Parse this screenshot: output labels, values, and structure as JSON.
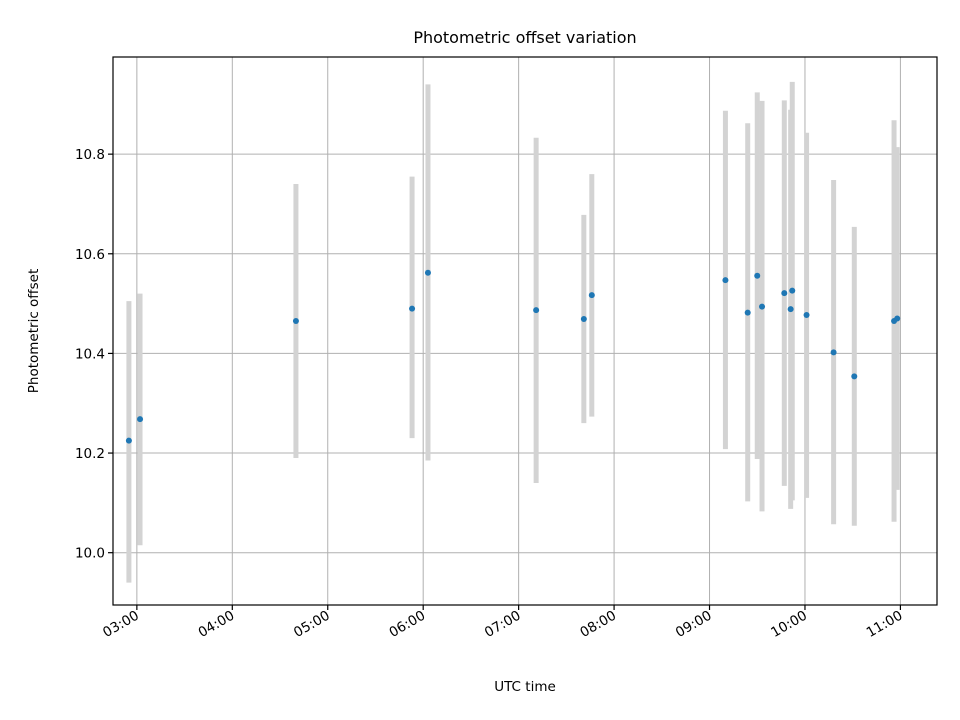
{
  "chart_data": {
    "type": "scatter",
    "title": "Photometric offset variation",
    "xlabel": "UTC time",
    "ylabel": "Photometric offset",
    "xlim": [
      "02:45",
      "11:23"
    ],
    "ylim": [
      9.895,
      10.995
    ],
    "x_ticks": [
      "03:00",
      "04:00",
      "05:00",
      "06:00",
      "07:00",
      "08:00",
      "09:00",
      "10:00",
      "11:00"
    ],
    "y_ticks": [
      10.0,
      10.2,
      10.4,
      10.6,
      10.8
    ],
    "y_tick_labels": [
      "10.0",
      "10.2",
      "10.4",
      "10.6",
      "10.8"
    ],
    "grid": true,
    "point_color": "#1f77b4",
    "errorbar_color": "#d3d3d3",
    "series": [
      {
        "points": [
          {
            "time": "02:55",
            "y": 10.225,
            "low": 9.94,
            "high": 10.505
          },
          {
            "time": "03:02",
            "y": 10.268,
            "low": 10.015,
            "high": 10.52
          },
          {
            "time": "04:40",
            "y": 10.465,
            "low": 10.19,
            "high": 10.74
          },
          {
            "time": "05:53",
            "y": 10.49,
            "low": 10.23,
            "high": 10.755
          },
          {
            "time": "06:03",
            "y": 10.562,
            "low": 10.185,
            "high": 10.94
          },
          {
            "time": "07:11",
            "y": 10.487,
            "low": 10.14,
            "high": 10.833
          },
          {
            "time": "07:41",
            "y": 10.469,
            "low": 10.26,
            "high": 10.678
          },
          {
            "time": "07:46",
            "y": 10.517,
            "low": 10.273,
            "high": 10.76
          },
          {
            "time": "09:10",
            "y": 10.547,
            "low": 10.208,
            "high": 10.887
          },
          {
            "time": "09:24",
            "y": 10.482,
            "low": 10.103,
            "high": 10.862
          },
          {
            "time": "09:30",
            "y": 10.556,
            "low": 10.188,
            "high": 10.924
          },
          {
            "time": "09:33",
            "y": 10.494,
            "low": 10.083,
            "high": 10.907
          },
          {
            "time": "09:47",
            "y": 10.521,
            "low": 10.134,
            "high": 10.908
          },
          {
            "time": "09:51",
            "y": 10.489,
            "low": 10.088,
            "high": 10.889
          },
          {
            "time": "09:52",
            "y": 10.526,
            "low": 10.105,
            "high": 10.945
          },
          {
            "time": "10:01",
            "y": 10.477,
            "low": 10.11,
            "high": 10.843
          },
          {
            "time": "10:18",
            "y": 10.402,
            "low": 10.057,
            "high": 10.748
          },
          {
            "time": "10:31",
            "y": 10.354,
            "low": 10.054,
            "high": 10.654
          },
          {
            "time": "10:56",
            "y": 10.465,
            "low": 10.062,
            "high": 10.868
          },
          {
            "time": "10:58",
            "y": 10.47,
            "low": 10.126,
            "high": 10.814
          }
        ]
      }
    ]
  }
}
